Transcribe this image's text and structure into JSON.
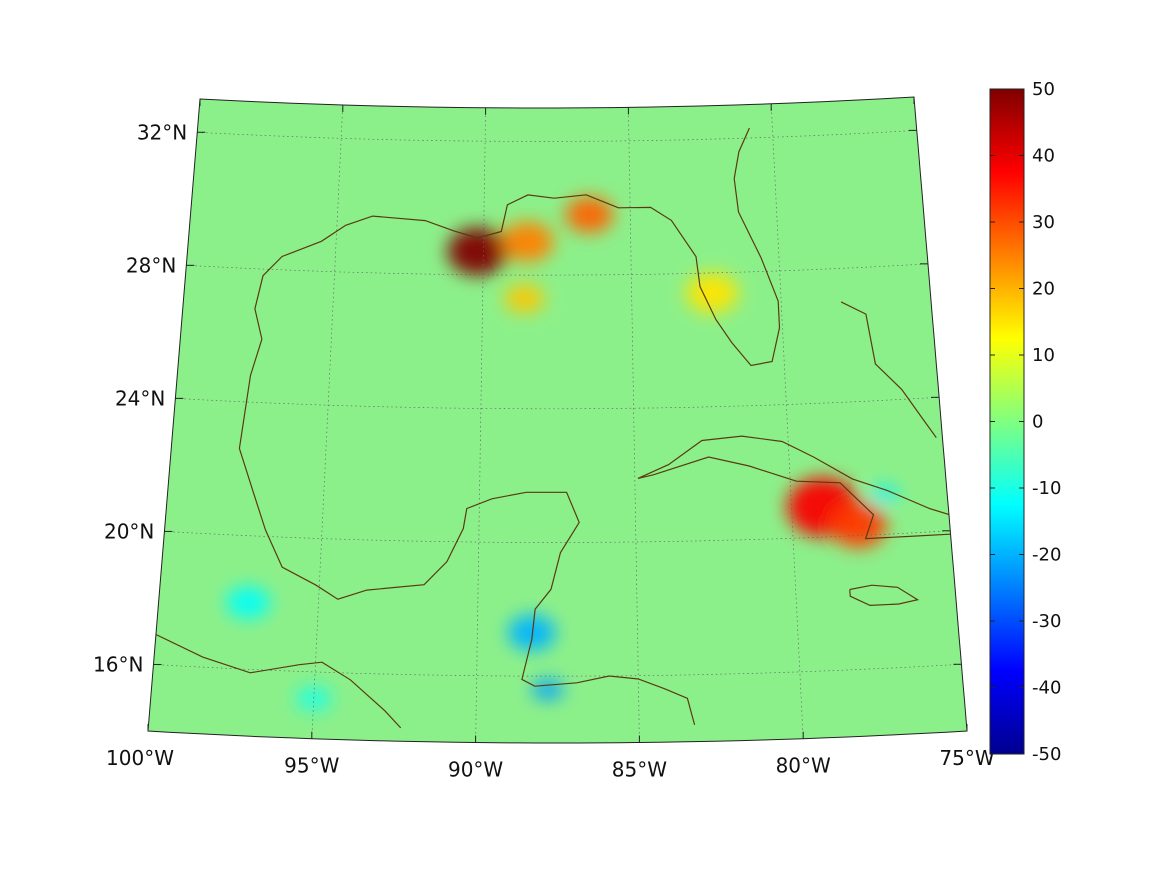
{
  "map": {
    "projection": "conic",
    "lon_range": [
      -100,
      -75
    ],
    "lat_range": [
      14,
      33
    ],
    "lon_tick_labels": [
      "100°W",
      "95°W",
      "90°W",
      "85°W",
      "80°W",
      "75°W"
    ],
    "lat_tick_labels": [
      "32°N",
      "28°N",
      "24°N",
      "20°N",
      "16°N"
    ],
    "grid": "dotted",
    "coastline_color": "#5a3a12",
    "background_field_color": "#8cf08a"
  },
  "colorbar": {
    "colormap": "jet",
    "range": [
      -50,
      50
    ],
    "tick_labels": [
      "50",
      "40",
      "30",
      "20",
      "10",
      "0",
      "-10",
      "-20",
      "-30",
      "-40",
      "-50"
    ]
  },
  "anomalies": [
    {
      "lon": -90.2,
      "lat": 28.7,
      "value": 50
    },
    {
      "lon": -88.5,
      "lat": 29.0,
      "value": 25
    },
    {
      "lon": -86.4,
      "lat": 29.8,
      "value": 28
    },
    {
      "lon": -88.6,
      "lat": 27.3,
      "value": 18
    },
    {
      "lon": -79.0,
      "lat": 20.9,
      "value": 38
    },
    {
      "lon": -77.9,
      "lat": 20.3,
      "value": 32
    },
    {
      "lon": -82.3,
      "lat": 27.4,
      "value": 15
    },
    {
      "lon": -88.3,
      "lat": 17.3,
      "value": -20
    },
    {
      "lon": -87.8,
      "lat": 15.6,
      "value": -22
    },
    {
      "lon": -97.2,
      "lat": 18.0,
      "value": -12
    },
    {
      "lon": -95.0,
      "lat": 15.2,
      "value": -10
    },
    {
      "lon": -77.0,
      "lat": 21.2,
      "value": -14
    }
  ]
}
